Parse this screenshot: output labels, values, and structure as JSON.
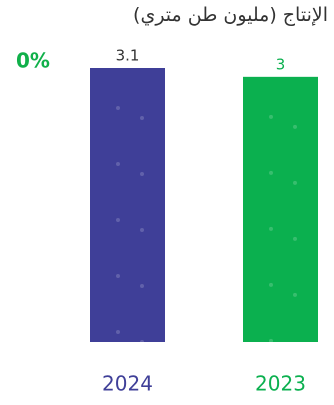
{
  "chart_data": {
    "type": "bar",
    "title": "الإنتاج (مليون طن متري)",
    "annotation": "0%",
    "annotation_color": "#10b04a",
    "categories": [
      "2024",
      "2023"
    ],
    "values": [
      3.1,
      3
    ],
    "colors": [
      "#3f3f98",
      "#0bb04f"
    ]
  }
}
